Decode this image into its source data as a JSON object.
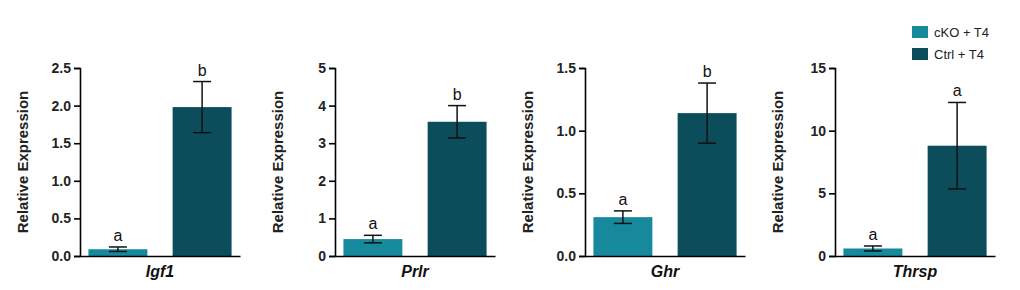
{
  "chart_data": [
    {
      "type": "bar",
      "y_label": "Relative Expression",
      "categories": [
        "Igf1"
      ],
      "series": [
        {
          "color": "#168a9c",
          "values": [
            0.09
          ],
          "errors": [
            0.03
          ],
          "annotations": [
            "a"
          ]
        },
        {
          "color": "#0c4d5c",
          "values": [
            1.98
          ],
          "errors": [
            0.34
          ],
          "annotations": [
            "b"
          ]
        }
      ],
      "ylim": [
        0,
        2.5
      ],
      "yticks": [
        {
          "value": 0,
          "label": "0.0"
        },
        0.5,
        {
          "value": 1,
          "label": "1.0"
        },
        1.5,
        {
          "value": 2,
          "label": "2.0"
        },
        2.5
      ]
    },
    {
      "type": "bar",
      "y_label": "Relative Expression",
      "categories": [
        "Prlr"
      ],
      "series": [
        {
          "color": "#168a9c",
          "values": [
            0.45
          ],
          "errors": [
            0.1
          ],
          "annotations": [
            "a"
          ]
        },
        {
          "color": "#0c4d5c",
          "values": [
            3.57
          ],
          "errors": [
            0.43
          ],
          "annotations": [
            "b"
          ]
        }
      ],
      "ylim": [
        0,
        5
      ],
      "yticks": [
        0,
        1,
        2,
        3,
        4,
        5
      ]
    },
    {
      "type": "bar",
      "y_label": "Relative Expression",
      "categories": [
        "Ghr"
      ],
      "series": [
        {
          "color": "#168a9c",
          "values": [
            0.31
          ],
          "errors": [
            0.05
          ],
          "annotations": [
            "a"
          ]
        },
        {
          "color": "#0c4d5c",
          "values": [
            1.14
          ],
          "errors": [
            0.24
          ],
          "annotations": [
            "b"
          ]
        }
      ],
      "ylim": [
        0,
        1.5
      ],
      "yticks": [
        {
          "value": 0,
          "label": "0.0"
        },
        0.5,
        {
          "value": 1,
          "label": "1.0"
        },
        1.5
      ]
    },
    {
      "type": "bar",
      "y_label": "Relative Expression",
      "categories": [
        "Thrsp"
      ],
      "legend": "top-right",
      "series": [
        {
          "name": "cKO + T4",
          "color": "#168a9c",
          "values": [
            0.6
          ],
          "errors": [
            0.2
          ],
          "annotations": [
            "a"
          ]
        },
        {
          "name": "Ctrl + T4",
          "color": "#0c4d5c",
          "values": [
            8.8
          ],
          "errors": [
            3.45
          ],
          "annotations": [
            "a"
          ]
        }
      ],
      "ylim": [
        0,
        15
      ],
      "yticks": [
        0,
        5,
        10,
        15
      ]
    }
  ]
}
